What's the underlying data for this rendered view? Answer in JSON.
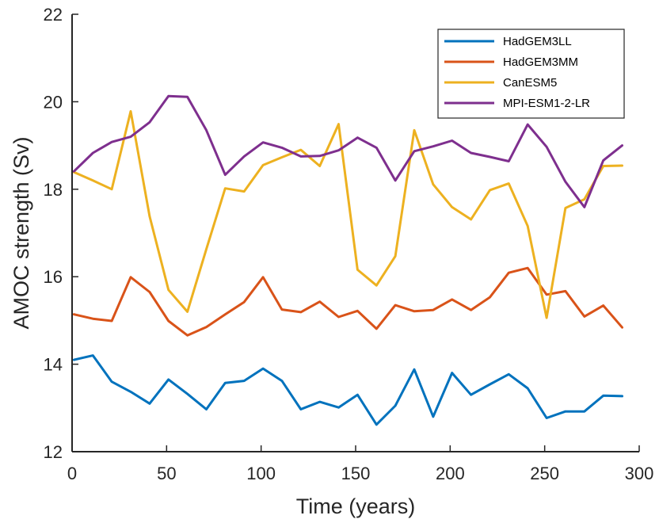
{
  "chart_data": {
    "type": "line",
    "title": "",
    "xlabel": "Time (years)",
    "ylabel": "AMOC strength (Sv)",
    "xlim": [
      0,
      300
    ],
    "ylim": [
      12,
      22
    ],
    "xticks": [
      0,
      50,
      100,
      150,
      200,
      250,
      300
    ],
    "yticks": [
      12,
      14,
      16,
      18,
      20,
      22
    ],
    "grid": false,
    "legend_position": "top-right",
    "x": [
      1,
      11,
      21,
      31,
      41,
      51,
      61,
      71,
      81,
      91,
      101,
      111,
      121,
      131,
      141,
      151,
      161,
      171,
      181,
      191,
      201,
      211,
      221,
      231,
      241,
      251,
      261,
      271,
      281,
      291
    ],
    "series": [
      {
        "name": "HadGEM3LL",
        "color": "#0072BD",
        "values": [
          14.1,
          14.2,
          13.6,
          13.37,
          13.1,
          13.65,
          13.32,
          12.97,
          13.57,
          13.62,
          13.9,
          13.62,
          12.97,
          13.14,
          13.01,
          13.3,
          12.62,
          13.05,
          13.88,
          12.8,
          13.8,
          13.3,
          13.54,
          13.77,
          13.45,
          12.77,
          12.92,
          12.92,
          13.28,
          13.27
        ]
      },
      {
        "name": "HadGEM3MM",
        "color": "#D95319",
        "values": [
          15.14,
          15.04,
          14.99,
          15.99,
          15.65,
          14.99,
          14.66,
          14.85,
          15.14,
          15.42,
          15.99,
          15.25,
          15.19,
          15.43,
          15.08,
          15.22,
          14.81,
          15.35,
          15.21,
          15.24,
          15.48,
          15.24,
          15.53,
          16.09,
          16.2,
          15.59,
          15.67,
          15.09,
          15.34,
          14.84
        ]
      },
      {
        "name": "CanESM5",
        "color": "#EDB120",
        "values": [
          18.39,
          18.2,
          18.0,
          19.78,
          17.38,
          15.7,
          15.2,
          16.63,
          18.02,
          17.95,
          18.55,
          18.73,
          18.9,
          18.53,
          19.49,
          16.16,
          15.8,
          16.47,
          19.35,
          18.11,
          17.59,
          17.31,
          17.98,
          18.13,
          17.16,
          15.06,
          17.57,
          17.77,
          18.53,
          18.54
        ]
      },
      {
        "name": "MPI-ESM1-2-LR",
        "color": "#7E2F8E",
        "values": [
          18.41,
          18.83,
          19.08,
          19.2,
          19.53,
          20.13,
          20.11,
          19.35,
          18.33,
          18.75,
          19.07,
          18.95,
          18.75,
          18.76,
          18.89,
          19.18,
          18.95,
          18.2,
          18.87,
          18.98,
          19.11,
          18.83,
          18.74,
          18.64,
          19.48,
          18.97,
          18.17,
          17.59,
          18.66,
          19.0
        ]
      }
    ]
  }
}
